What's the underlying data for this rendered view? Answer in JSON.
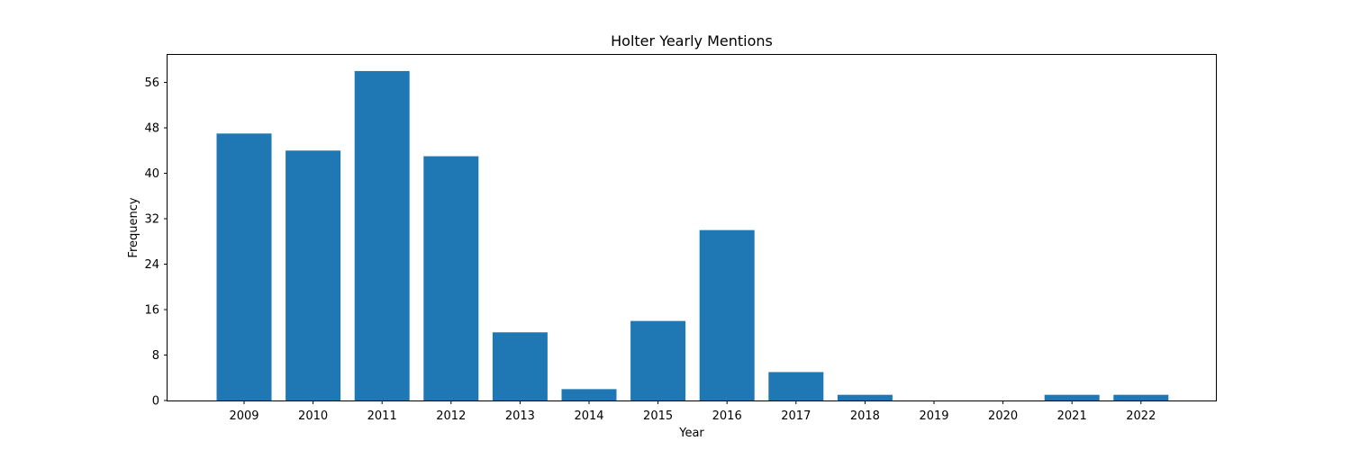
{
  "chart_data": {
    "type": "bar",
    "title": "Holter Yearly Mentions",
    "xlabel": "Year",
    "ylabel": "Frequency",
    "categories": [
      "2009",
      "2010",
      "2011",
      "2012",
      "2013",
      "2014",
      "2015",
      "2016",
      "2017",
      "2018",
      "2019",
      "2020",
      "2021",
      "2022"
    ],
    "values": [
      47,
      44,
      58,
      43,
      12,
      2,
      14,
      30,
      5,
      1,
      0,
      0,
      1,
      1
    ],
    "ylim": [
      0,
      61
    ],
    "yticks": [
      0,
      8,
      16,
      24,
      32,
      40,
      48,
      56
    ],
    "bar_color": "#1f77b4",
    "grid": false,
    "legend": "none"
  }
}
